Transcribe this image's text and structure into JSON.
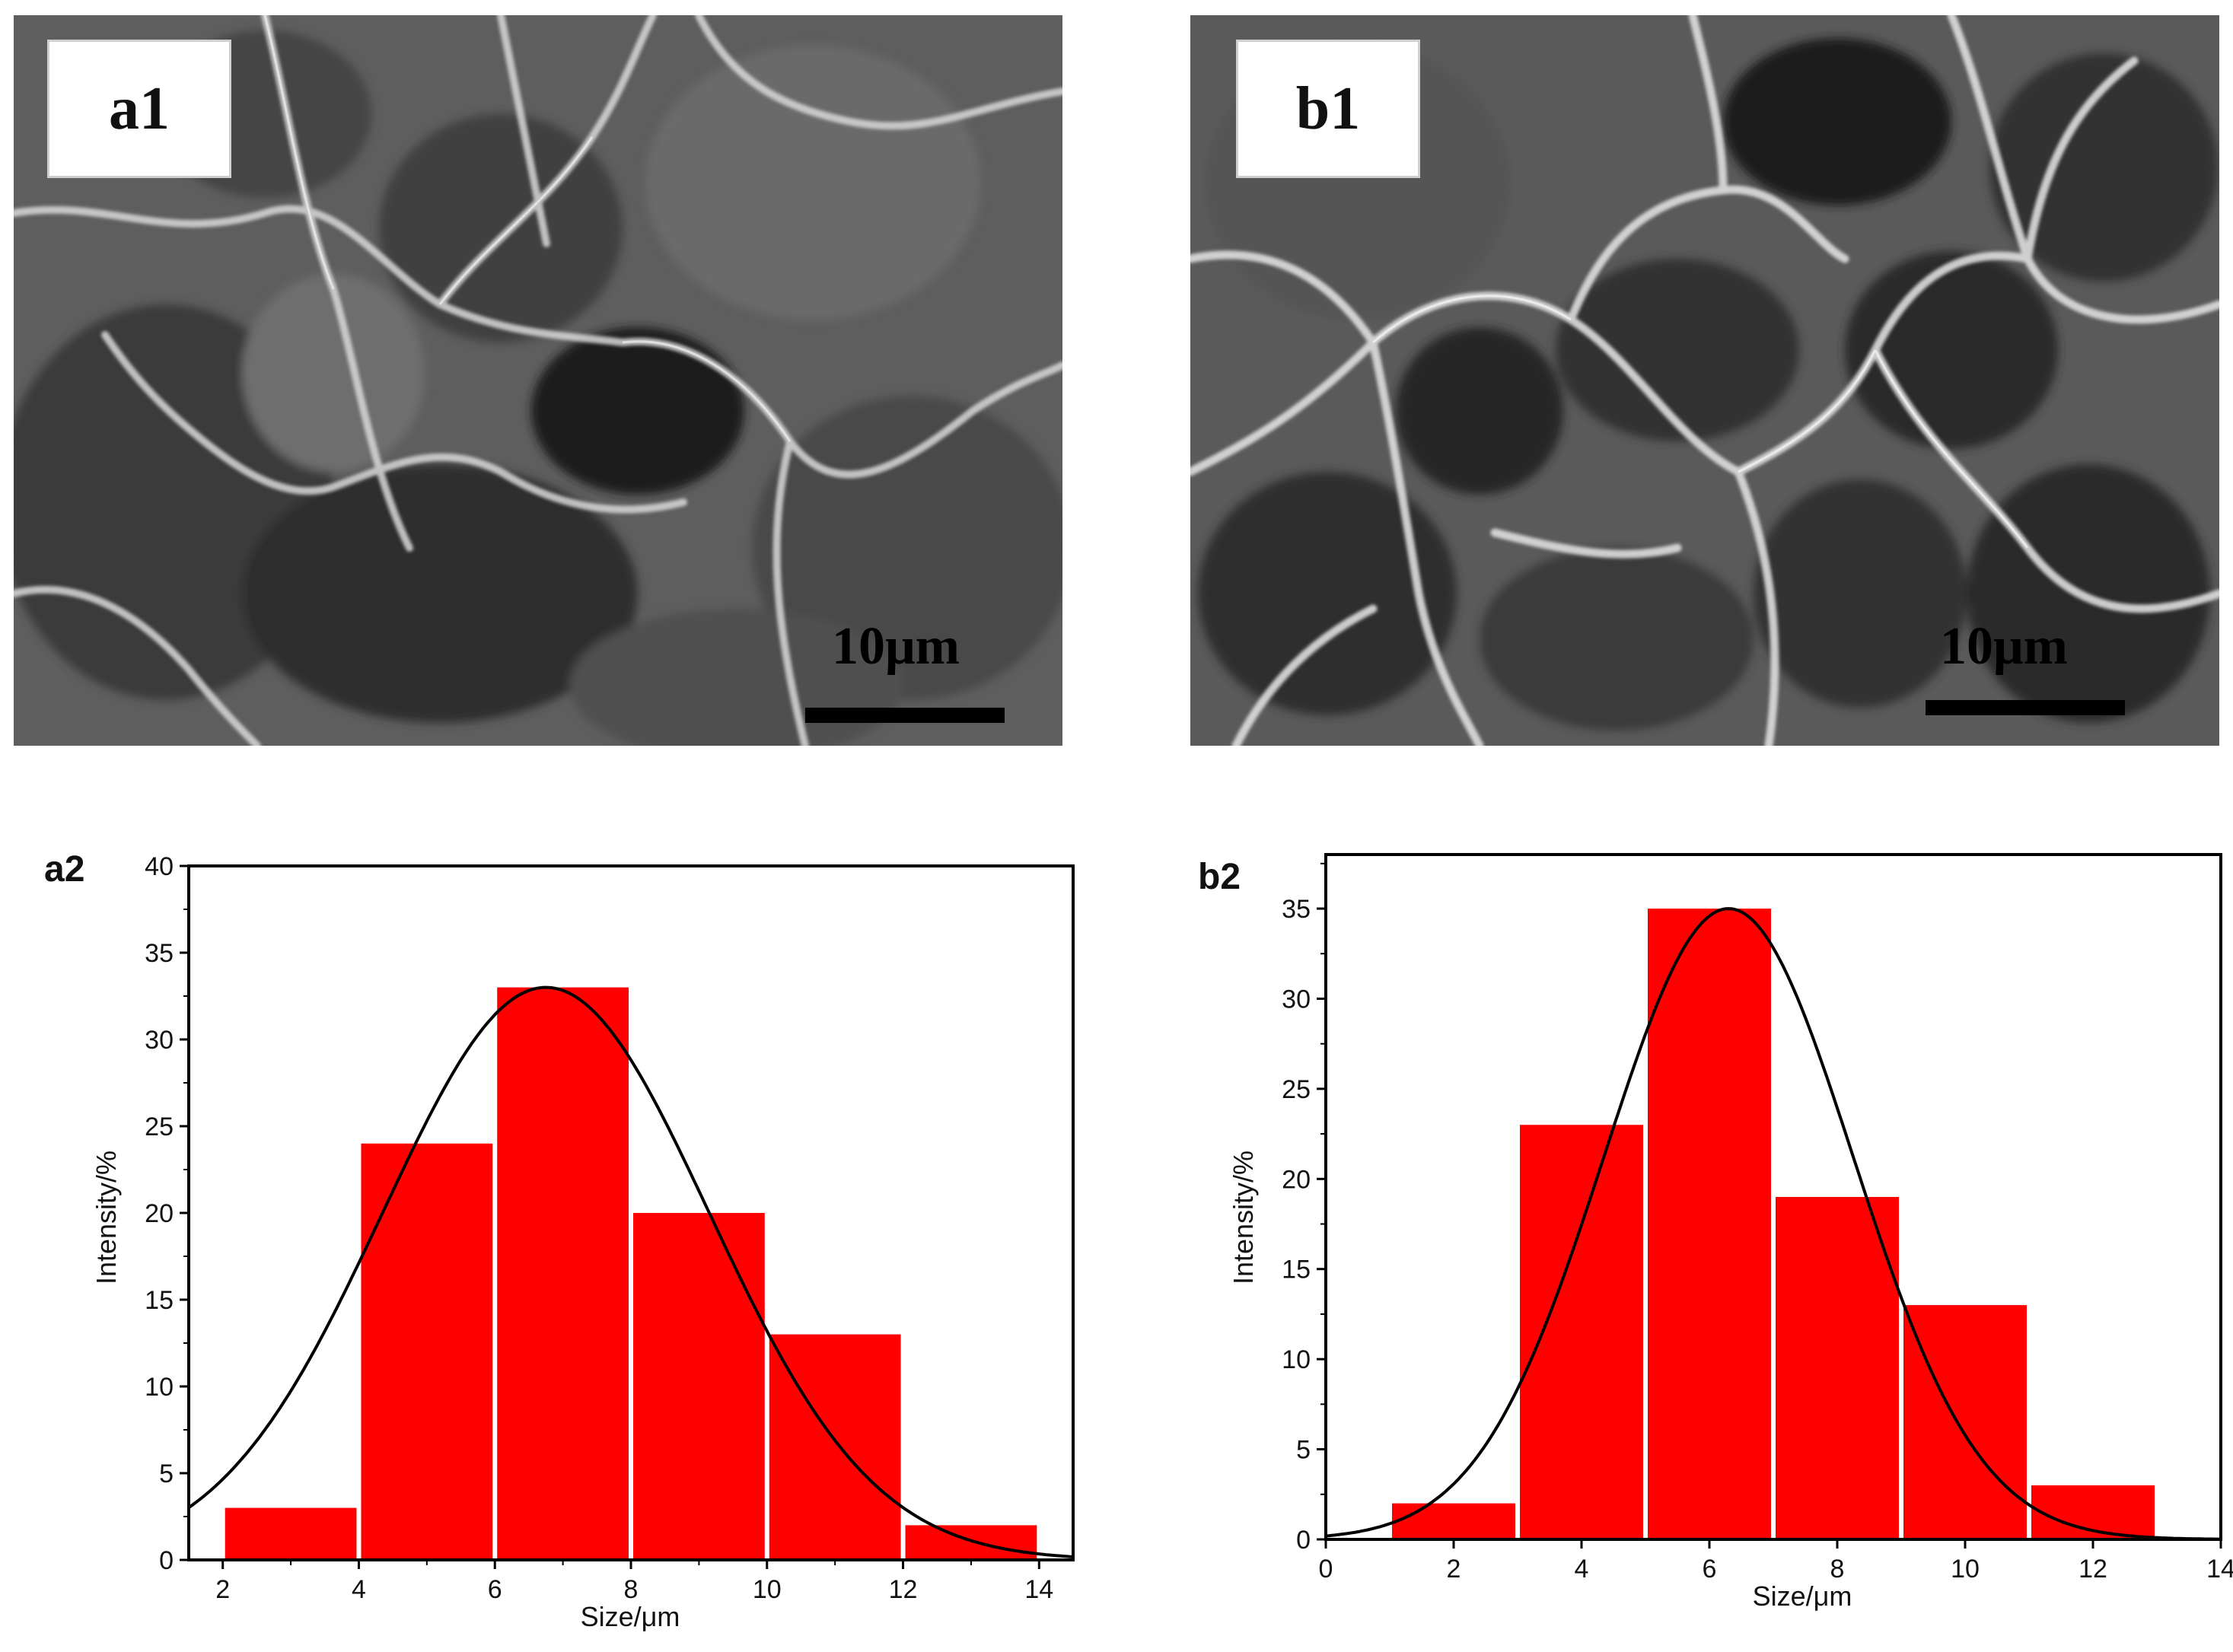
{
  "micrographs": [
    {
      "label": "a1",
      "scale_text": "10μm"
    },
    {
      "label": "b1",
      "scale_text": "10μm"
    }
  ],
  "colors": {
    "bar": "#ff0000",
    "fit": "#000000",
    "sem_bg": "#5a5a5a"
  },
  "chart_data": [
    {
      "type": "bar",
      "panel_label": "a2",
      "title": "",
      "xlabel": "Size/μm",
      "ylabel": "Intensity/%",
      "bins": [
        [
          2,
          4
        ],
        [
          4,
          6
        ],
        [
          6,
          8
        ],
        [
          8,
          10
        ],
        [
          10,
          12
        ],
        [
          12,
          14
        ]
      ],
      "values": [
        3,
        24,
        33,
        20,
        13,
        2
      ],
      "xlim": [
        1.5,
        14.5
      ],
      "ylim": [
        0,
        40
      ],
      "xticks": [
        2,
        4,
        6,
        8,
        10,
        12,
        14
      ],
      "yticks": [
        0,
        5,
        10,
        15,
        20,
        25,
        30,
        35,
        40
      ],
      "fit": {
        "type": "gaussian",
        "amplitude": 33,
        "mean": 6.75,
        "sigma": 2.4
      }
    },
    {
      "type": "bar",
      "panel_label": "b2",
      "title": "",
      "xlabel": "Size/μm",
      "ylabel": "Intensity/%",
      "bins": [
        [
          1,
          3
        ],
        [
          3,
          5
        ],
        [
          5,
          7
        ],
        [
          7,
          9
        ],
        [
          9,
          11
        ],
        [
          11,
          13
        ]
      ],
      "values": [
        2,
        23,
        35,
        19,
        13,
        3
      ],
      "xlim": [
        0,
        14
      ],
      "ylim": [
        0,
        38
      ],
      "xticks": [
        0,
        2,
        4,
        6,
        8,
        10,
        12,
        14
      ],
      "yticks": [
        0,
        5,
        10,
        15,
        20,
        25,
        30,
        35
      ],
      "fit": {
        "type": "gaussian",
        "amplitude": 35,
        "mean": 6.3,
        "sigma": 1.95
      }
    }
  ]
}
